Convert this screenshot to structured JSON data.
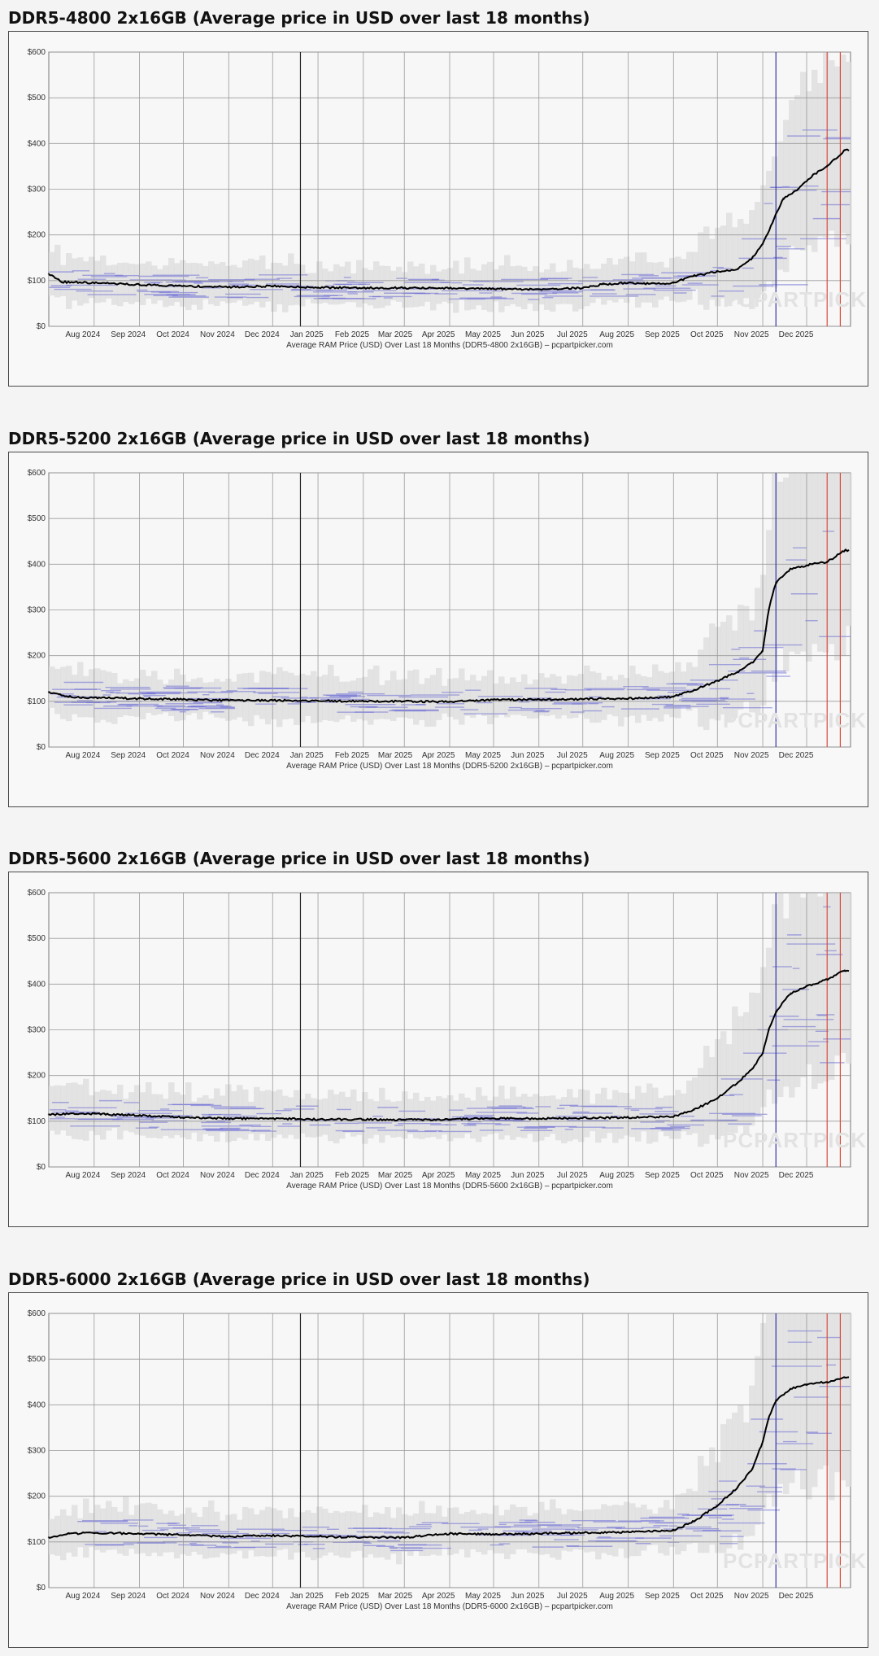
{
  "chart_data": [
    {
      "type": "line",
      "title": "DDR5-4800 2x16GB (Average price in USD over last 18 months)",
      "caption": "Average RAM Price (USD) Over Last 18 Months (DDR5-4800 2x16GB) – pcpartpicker.com",
      "watermark": "PCPARTPICKER",
      "ylim": [
        0,
        600
      ],
      "yticks": [
        0,
        100,
        200,
        300,
        400,
        500,
        600
      ],
      "ytick_labels": [
        "$0",
        "$100",
        "$200",
        "$300",
        "$400",
        "$500",
        "$600"
      ],
      "xticks": [
        "Aug 2024",
        "Sep 2024",
        "Oct 2024",
        "Nov 2024",
        "Dec 2024",
        "Jan 2025",
        "Feb 2025",
        "Mar 2025",
        "Apr 2025",
        "May 2025",
        "Jun 2025",
        "Jul 2025",
        "Aug 2025",
        "Sep 2025",
        "Oct 2025",
        "Nov 2025",
        "Dec 2025"
      ],
      "grid": true,
      "series": [
        {
          "color": "#000000",
          "x": [
            "2024-07-01",
            "2024-07-10",
            "2024-08-01",
            "2024-09-01",
            "2024-10-01",
            "2024-11-01",
            "2024-12-01",
            "2025-01-01",
            "2025-02-01",
            "2025-03-01",
            "2025-04-01",
            "2025-05-01",
            "2025-06-01",
            "2025-07-01",
            "2025-07-15",
            "2025-08-01",
            "2025-08-20",
            "2025-09-01",
            "2025-09-15",
            "2025-10-01",
            "2025-10-15",
            "2025-10-25",
            "2025-11-01",
            "2025-11-08",
            "2025-11-15",
            "2025-11-25",
            "2025-12-05",
            "2025-12-15",
            "2025-12-20",
            "2025-12-27"
          ],
          "y": [
            115,
            97,
            95,
            91,
            88,
            86,
            88,
            85,
            84,
            84,
            83,
            82,
            81,
            84,
            92,
            95,
            93,
            95,
            110,
            120,
            125,
            150,
            180,
            230,
            280,
            300,
            330,
            350,
            365,
            385
          ]
        }
      ],
      "reference_lines": [
        "2024-12-20",
        "2025-11-10",
        "2025-12-15",
        "2025-12-24"
      ]
    },
    {
      "type": "line",
      "title": "DDR5-5200 2x16GB (Average price in USD over last 18 months)",
      "caption": "Average RAM Price (USD) Over Last 18 Months (DDR5-5200 2x16GB) – pcpartpicker.com",
      "watermark": "PCPARTPICKER",
      "ylim": [
        0,
        600
      ],
      "yticks": [
        0,
        100,
        200,
        300,
        400,
        500,
        600
      ],
      "ytick_labels": [
        "$0",
        "$100",
        "$200",
        "$300",
        "$400",
        "$500",
        "$600"
      ],
      "xticks": [
        "Aug 2024",
        "Sep 2024",
        "Oct 2024",
        "Nov 2024",
        "Dec 2024",
        "Jan 2025",
        "Feb 2025",
        "Mar 2025",
        "Apr 2025",
        "May 2025",
        "Jun 2025",
        "Jul 2025",
        "Aug 2025",
        "Sep 2025",
        "Oct 2025",
        "Nov 2025",
        "Dec 2025"
      ],
      "grid": true,
      "series": [
        {
          "color": "#000000",
          "x": [
            "2024-07-01",
            "2024-07-15",
            "2024-08-01",
            "2024-09-01",
            "2024-10-01",
            "2024-11-01",
            "2024-12-01",
            "2025-01-01",
            "2025-02-01",
            "2025-03-01",
            "2025-04-01",
            "2025-05-01",
            "2025-06-01",
            "2025-07-01",
            "2025-08-01",
            "2025-09-01",
            "2025-09-15",
            "2025-10-01",
            "2025-10-15",
            "2025-10-25",
            "2025-11-01",
            "2025-11-05",
            "2025-11-10",
            "2025-11-20",
            "2025-12-05",
            "2025-12-15",
            "2025-12-27"
          ],
          "y": [
            120,
            110,
            108,
            106,
            104,
            102,
            102,
            101,
            100,
            100,
            99,
            103,
            104,
            105,
            106,
            110,
            125,
            145,
            165,
            185,
            210,
            300,
            360,
            390,
            400,
            405,
            430
          ]
        }
      ],
      "reference_lines": [
        "2024-12-20",
        "2025-11-10",
        "2025-12-15",
        "2025-12-24"
      ]
    },
    {
      "type": "line",
      "title": "DDR5-5600 2x16GB (Average price in USD over last 18 months)",
      "caption": "Average RAM Price (USD) Over Last 18 Months (DDR5-5600 2x16GB) – pcpartpicker.com",
      "watermark": "PCPARTPICKER",
      "ylim": [
        0,
        600
      ],
      "yticks": [
        0,
        100,
        200,
        300,
        400,
        500,
        600
      ],
      "ytick_labels": [
        "$0",
        "$100",
        "$200",
        "$300",
        "$400",
        "$500",
        "$600"
      ],
      "xticks": [
        "Aug 2024",
        "Sep 2024",
        "Oct 2024",
        "Nov 2024",
        "Dec 2024",
        "Jan 2025",
        "Feb 2025",
        "Mar 2025",
        "Apr 2025",
        "May 2025",
        "Jun 2025",
        "Jul 2025",
        "Aug 2025",
        "Sep 2025",
        "Oct 2025",
        "Nov 2025",
        "Dec 2025"
      ],
      "grid": true,
      "series": [
        {
          "color": "#000000",
          "x": [
            "2024-07-01",
            "2024-08-01",
            "2024-09-01",
            "2024-10-01",
            "2024-11-01",
            "2024-12-01",
            "2025-01-01",
            "2025-02-01",
            "2025-03-01",
            "2025-04-01",
            "2025-05-01",
            "2025-06-01",
            "2025-07-01",
            "2025-08-01",
            "2025-09-01",
            "2025-09-15",
            "2025-10-01",
            "2025-10-15",
            "2025-10-25",
            "2025-11-01",
            "2025-11-05",
            "2025-11-10",
            "2025-11-20",
            "2025-12-01",
            "2025-12-15",
            "2025-12-27"
          ],
          "y": [
            115,
            116,
            113,
            108,
            106,
            106,
            104,
            104,
            103,
            104,
            106,
            106,
            107,
            108,
            110,
            125,
            150,
            185,
            215,
            250,
            300,
            340,
            380,
            395,
            410,
            430
          ]
        }
      ],
      "reference_lines": [
        "2024-12-20",
        "2025-11-10",
        "2025-12-15",
        "2025-12-24"
      ]
    },
    {
      "type": "line",
      "title": "DDR5-6000 2x16GB (Average price in USD over last 18 months)",
      "caption": "Average RAM Price (USD) Over Last 18 Months (DDR5-6000 2x16GB) – pcpartpicker.com",
      "watermark": "PCPARTPICKER",
      "ylim": [
        0,
        600
      ],
      "yticks": [
        0,
        100,
        200,
        300,
        400,
        500,
        600
      ],
      "ytick_labels": [
        "$0",
        "$100",
        "$200",
        "$300",
        "$400",
        "$500",
        "$600"
      ],
      "xticks": [
        "Aug 2024",
        "Sep 2024",
        "Oct 2024",
        "Nov 2024",
        "Dec 2024",
        "Jan 2025",
        "Feb 2025",
        "Mar 2025",
        "Apr 2025",
        "May 2025",
        "Jun 2025",
        "Jul 2025",
        "Aug 2025",
        "Sep 2025",
        "Oct 2025",
        "Nov 2025",
        "Dec 2025"
      ],
      "grid": true,
      "series": [
        {
          "color": "#000000",
          "x": [
            "2024-07-01",
            "2024-07-15",
            "2024-08-01",
            "2024-09-01",
            "2024-10-01",
            "2024-11-01",
            "2024-12-01",
            "2025-01-01",
            "2025-02-01",
            "2025-03-01",
            "2025-04-01",
            "2025-05-01",
            "2025-06-01",
            "2025-07-01",
            "2025-08-01",
            "2025-09-01",
            "2025-09-15",
            "2025-10-01",
            "2025-10-15",
            "2025-10-25",
            "2025-11-01",
            "2025-11-05",
            "2025-11-10",
            "2025-11-20",
            "2025-12-01",
            "2025-12-15",
            "2025-12-27"
          ],
          "y": [
            110,
            118,
            120,
            118,
            115,
            112,
            114,
            112,
            110,
            110,
            118,
            117,
            118,
            120,
            122,
            125,
            145,
            180,
            220,
            260,
            320,
            370,
            410,
            435,
            445,
            450,
            460
          ]
        }
      ],
      "reference_lines": [
        "2024-12-20",
        "2025-11-10",
        "2025-12-15",
        "2025-12-24"
      ]
    }
  ]
}
